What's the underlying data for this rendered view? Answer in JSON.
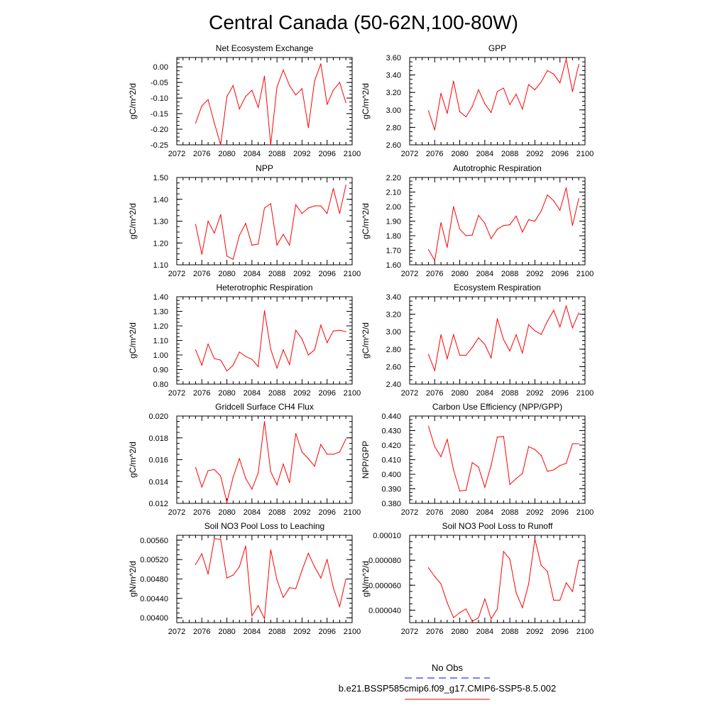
{
  "figure": {
    "title": "Central Canada (50-62N,100-80W)"
  },
  "legend": {
    "entries": [
      {
        "label": "No Obs",
        "color": "#0000ff",
        "style": "dashed"
      },
      {
        "label": "b.e21.BSSP585cmip6.f09_g17.CMIP6-SSP5-8.5.002",
        "color": "#ff0000",
        "style": "solid"
      }
    ]
  },
  "chart_data": [
    {
      "type": "line",
      "title": "Net Ecosystem Exchange",
      "ylabel": "gC/m^2/d",
      "xlim": [
        2072,
        2100
      ],
      "ylim": [
        -0.25,
        0.03
      ],
      "xticks": [
        "2072",
        "2076",
        "2080",
        "2084",
        "2088",
        "2092",
        "2096",
        "2100"
      ],
      "yticks": [
        "0.00",
        "-0.05",
        "-0.10",
        "-0.15",
        "-0.20",
        "-0.25"
      ],
      "ytick_values": [
        0.0,
        -0.05,
        -0.1,
        -0.15,
        -0.2,
        -0.25
      ],
      "x": [
        2075,
        2076,
        2077,
        2078,
        2079,
        2080,
        2081,
        2082,
        2083,
        2084,
        2085,
        2086,
        2087,
        2088,
        2089,
        2090,
        2091,
        2092,
        2093,
        2094,
        2095,
        2096,
        2097,
        2098,
        2099
      ],
      "series": [
        {
          "name": "b.e21.BSSP585cmip6.f09_g17.CMIP6-SSP5-8.5.002",
          "color": "#ff0000",
          "values": [
            -0.18,
            -0.125,
            -0.105,
            -0.18,
            -0.25,
            -0.095,
            -0.06,
            -0.135,
            -0.095,
            -0.075,
            -0.13,
            -0.03,
            -0.25,
            -0.065,
            -0.01,
            -0.06,
            -0.09,
            -0.07,
            -0.195,
            -0.045,
            0.01,
            -0.12,
            -0.075,
            -0.05,
            -0.115
          ]
        }
      ]
    },
    {
      "type": "line",
      "title": "GPP",
      "ylabel": "gC/m^2/d",
      "xlim": [
        2072,
        2100
      ],
      "ylim": [
        2.6,
        3.6
      ],
      "xticks": [
        "2072",
        "2076",
        "2080",
        "2084",
        "2088",
        "2092",
        "2096",
        "2100"
      ],
      "yticks": [
        "3.60",
        "3.40",
        "3.20",
        "3.00",
        "2.80",
        "2.60"
      ],
      "ytick_values": [
        3.6,
        3.4,
        3.2,
        3.0,
        2.8,
        2.6
      ],
      "x": [
        2075,
        2076,
        2077,
        2078,
        2079,
        2080,
        2081,
        2082,
        2083,
        2084,
        2085,
        2086,
        2087,
        2088,
        2089,
        2090,
        2091,
        2092,
        2093,
        2094,
        2095,
        2096,
        2097,
        2098,
        2099
      ],
      "series": [
        {
          "name": "b.e21.BSSP585cmip6.f09_g17.CMIP6-SSP5-8.5.002",
          "color": "#ff0000",
          "values": [
            2.99,
            2.77,
            3.19,
            2.96,
            3.33,
            2.98,
            2.92,
            3.04,
            3.23,
            3.07,
            2.97,
            3.21,
            3.25,
            3.06,
            3.18,
            3.01,
            3.29,
            3.23,
            3.32,
            3.45,
            3.41,
            3.31,
            3.58,
            3.21,
            3.52
          ]
        }
      ]
    },
    {
      "type": "line",
      "title": "NPP",
      "ylabel": "gC/m^2/d",
      "xlim": [
        2072,
        2100
      ],
      "ylim": [
        1.1,
        1.5
      ],
      "xticks": [
        "2072",
        "2076",
        "2080",
        "2084",
        "2088",
        "2092",
        "2096",
        "2100"
      ],
      "yticks": [
        "1.50",
        "1.40",
        "1.30",
        "1.20",
        "1.10"
      ],
      "ytick_values": [
        1.5,
        1.4,
        1.3,
        1.2,
        1.1
      ],
      "x": [
        2075,
        2076,
        2077,
        2078,
        2079,
        2080,
        2081,
        2082,
        2083,
        2084,
        2085,
        2086,
        2087,
        2088,
        2089,
        2090,
        2091,
        2092,
        2093,
        2094,
        2095,
        2096,
        2097,
        2098,
        2099
      ],
      "series": [
        {
          "name": "b.e21.BSSP585cmip6.f09_g17.CMIP6-SSP5-8.5.002",
          "color": "#ff0000",
          "values": [
            1.285,
            1.148,
            1.3,
            1.245,
            1.33,
            1.14,
            1.125,
            1.235,
            1.29,
            1.19,
            1.195,
            1.36,
            1.38,
            1.19,
            1.24,
            1.19,
            1.375,
            1.335,
            1.36,
            1.37,
            1.37,
            1.335,
            1.45,
            1.335,
            1.465
          ]
        }
      ]
    },
    {
      "type": "line",
      "title": "Autotrophic Respiration",
      "ylabel": "gC/m^2/d",
      "xlim": [
        2072,
        2100
      ],
      "ylim": [
        1.6,
        2.2
      ],
      "xticks": [
        "2072",
        "2076",
        "2080",
        "2084",
        "2088",
        "2092",
        "2096",
        "2100"
      ],
      "yticks": [
        "2.20",
        "2.10",
        "2.00",
        "1.90",
        "1.80",
        "1.70",
        "1.60"
      ],
      "ytick_values": [
        2.2,
        2.1,
        2.0,
        1.9,
        1.8,
        1.7,
        1.6
      ],
      "x": [
        2075,
        2076,
        2077,
        2078,
        2079,
        2080,
        2081,
        2082,
        2083,
        2084,
        2085,
        2086,
        2087,
        2088,
        2089,
        2090,
        2091,
        2092,
        2093,
        2094,
        2095,
        2096,
        2097,
        2098,
        2099
      ],
      "series": [
        {
          "name": "b.e21.BSSP585cmip6.f09_g17.CMIP6-SSP5-8.5.002",
          "color": "#ff0000",
          "values": [
            1.705,
            1.63,
            1.89,
            1.72,
            2.0,
            1.845,
            1.8,
            1.805,
            1.94,
            1.885,
            1.78,
            1.845,
            1.87,
            1.875,
            1.935,
            1.825,
            1.91,
            1.9,
            1.97,
            2.08,
            2.04,
            1.975,
            2.13,
            1.87,
            2.055
          ]
        }
      ]
    },
    {
      "type": "line",
      "title": "Heterotrophic Respiration",
      "ylabel": "gC/m^2/d",
      "xlim": [
        2072,
        2100
      ],
      "ylim": [
        0.8,
        1.4
      ],
      "xticks": [
        "2072",
        "2076",
        "2080",
        "2084",
        "2088",
        "2092",
        "2096",
        "2100"
      ],
      "yticks": [
        "1.40",
        "1.30",
        "1.20",
        "1.10",
        "1.00",
        "0.90",
        "0.80"
      ],
      "ytick_values": [
        1.4,
        1.3,
        1.2,
        1.1,
        1.0,
        0.9,
        0.8
      ],
      "x": [
        2075,
        2076,
        2077,
        2078,
        2079,
        2080,
        2081,
        2082,
        2083,
        2084,
        2085,
        2086,
        2087,
        2088,
        2089,
        2090,
        2091,
        2092,
        2093,
        2094,
        2095,
        2096,
        2097,
        2098,
        2099
      ],
      "series": [
        {
          "name": "b.e21.BSSP585cmip6.f09_g17.CMIP6-SSP5-8.5.002",
          "color": "#ff0000",
          "values": [
            1.035,
            0.93,
            1.075,
            0.975,
            0.965,
            0.89,
            0.93,
            1.02,
            0.99,
            0.97,
            0.92,
            1.305,
            1.04,
            0.91,
            1.035,
            0.935,
            1.17,
            1.11,
            1.0,
            1.035,
            1.205,
            1.085,
            1.165,
            1.17,
            1.16
          ]
        }
      ]
    },
    {
      "type": "line",
      "title": "Ecosystem Respiration",
      "ylabel": "gC/m^2/d",
      "xlim": [
        2072,
        2100
      ],
      "ylim": [
        2.4,
        3.4
      ],
      "xticks": [
        "2072",
        "2076",
        "2080",
        "2084",
        "2088",
        "2092",
        "2096",
        "2100"
      ],
      "yticks": [
        "3.40",
        "3.20",
        "3.00",
        "2.80",
        "2.60",
        "2.40"
      ],
      "ytick_values": [
        3.4,
        3.2,
        3.0,
        2.8,
        2.6,
        2.4
      ],
      "x": [
        2075,
        2076,
        2077,
        2078,
        2079,
        2080,
        2081,
        2082,
        2083,
        2084,
        2085,
        2086,
        2087,
        2088,
        2089,
        2090,
        2091,
        2092,
        2093,
        2094,
        2095,
        2096,
        2097,
        2098,
        2099
      ],
      "series": [
        {
          "name": "b.e21.BSSP585cmip6.f09_g17.CMIP6-SSP5-8.5.002",
          "color": "#ff0000",
          "values": [
            2.74,
            2.555,
            2.965,
            2.69,
            2.965,
            2.73,
            2.73,
            2.82,
            2.93,
            2.855,
            2.7,
            3.15,
            2.91,
            2.78,
            2.965,
            2.755,
            3.08,
            3.01,
            2.97,
            3.12,
            3.245,
            3.055,
            3.295,
            3.045,
            3.215
          ]
        }
      ]
    },
    {
      "type": "line",
      "title": "Gridcell Surface CH4 Flux",
      "ylabel": "gC/m^2/d",
      "xlim": [
        2072,
        2100
      ],
      "ylim": [
        0.012,
        0.02
      ],
      "xticks": [
        "2072",
        "2076",
        "2080",
        "2084",
        "2088",
        "2092",
        "2096",
        "2100"
      ],
      "yticks": [
        "0.020",
        "0.018",
        "0.016",
        "0.014",
        "0.012"
      ],
      "ytick_values": [
        0.02,
        0.018,
        0.016,
        0.014,
        0.012
      ],
      "x": [
        2075,
        2076,
        2077,
        2078,
        2079,
        2080,
        2081,
        2082,
        2083,
        2084,
        2085,
        2086,
        2087,
        2088,
        2089,
        2090,
        2091,
        2092,
        2093,
        2094,
        2095,
        2096,
        2097,
        2098,
        2099
      ],
      "series": [
        {
          "name": "b.e21.BSSP585cmip6.f09_g17.CMIP6-SSP5-8.5.002",
          "color": "#ff0000",
          "values": [
            0.0153,
            0.0135,
            0.015,
            0.0151,
            0.0145,
            0.0121,
            0.0144,
            0.0161,
            0.0143,
            0.0133,
            0.0148,
            0.0195,
            0.0149,
            0.0137,
            0.0156,
            0.0139,
            0.0184,
            0.0167,
            0.0161,
            0.0154,
            0.0174,
            0.0165,
            0.0165,
            0.0167,
            0.0179
          ]
        }
      ]
    },
    {
      "type": "line",
      "title": "Carbon Use Efficiency (NPP/GPP)",
      "ylabel": "NPP/GPP",
      "xlim": [
        2072,
        2100
      ],
      "ylim": [
        0.38,
        0.44
      ],
      "xticks": [
        "2072",
        "2076",
        "2080",
        "2084",
        "2088",
        "2092",
        "2096",
        "2100"
      ],
      "yticks": [
        "0.440",
        "0.430",
        "0.420",
        "0.410",
        "0.400",
        "0.390",
        "0.380"
      ],
      "ytick_values": [
        0.44,
        0.43,
        0.42,
        0.41,
        0.4,
        0.39,
        0.38
      ],
      "x": [
        2075,
        2076,
        2077,
        2078,
        2079,
        2080,
        2081,
        2082,
        2083,
        2084,
        2085,
        2086,
        2087,
        2088,
        2089,
        2090,
        2091,
        2092,
        2093,
        2094,
        2095,
        2096,
        2097,
        2098,
        2099
      ],
      "series": [
        {
          "name": "b.e21.BSSP585cmip6.f09_g17.CMIP6-SSP5-8.5.002",
          "color": "#ff0000",
          "values": [
            0.433,
            0.419,
            0.412,
            0.424,
            0.403,
            0.3885,
            0.389,
            0.408,
            0.405,
            0.391,
            0.406,
            0.4255,
            0.426,
            0.393,
            0.397,
            0.4005,
            0.419,
            0.417,
            0.413,
            0.402,
            0.403,
            0.406,
            0.4075,
            0.421,
            0.421
          ]
        }
      ]
    },
    {
      "type": "line",
      "title": "Soil NO3 Pool Loss to Leaching",
      "ylabel": "gN/m^2/d",
      "xlim": [
        2072,
        2100
      ],
      "ylim": [
        0.0039,
        0.0057
      ],
      "xticks": [
        "2072",
        "2076",
        "2080",
        "2084",
        "2088",
        "2092",
        "2096",
        "2100"
      ],
      "yticks": [
        "0.00560",
        "0.00520",
        "0.00480",
        "0.00440",
        "0.00400"
      ],
      "ytick_values": [
        0.0056,
        0.0052,
        0.0048,
        0.0044,
        0.004
      ],
      "x": [
        2075,
        2076,
        2077,
        2078,
        2079,
        2080,
        2081,
        2082,
        2083,
        2084,
        2085,
        2086,
        2087,
        2088,
        2089,
        2090,
        2091,
        2092,
        2093,
        2094,
        2095,
        2096,
        2097,
        2098,
        2099
      ],
      "series": [
        {
          "name": "b.e21.BSSP585cmip6.f09_g17.CMIP6-SSP5-8.5.002",
          "color": "#ff0000",
          "values": [
            0.0051,
            0.00532,
            0.0049,
            0.00563,
            0.00562,
            0.00482,
            0.00488,
            0.00505,
            0.00548,
            0.00404,
            0.00425,
            0.00398,
            0.0054,
            0.00478,
            0.00442,
            0.00462,
            0.0046,
            0.00498,
            0.00533,
            0.00505,
            0.00482,
            0.0052,
            0.00462,
            0.00423,
            0.0048
          ]
        }
      ]
    },
    {
      "type": "line",
      "title": "Soil NO3 Pool Loss to Runoff",
      "ylabel": "gN/m^2/d",
      "xlim": [
        2072,
        2100
      ],
      "ylim": [
        3e-05,
        0.0001
      ],
      "xticks": [
        "2072",
        "2076",
        "2080",
        "2084",
        "2088",
        "2092",
        "2096",
        "2100"
      ],
      "yticks": [
        "0.00010",
        "0.000080",
        "0.000060",
        "0.000040"
      ],
      "ytick_values": [
        0.0001,
        8e-05,
        6e-05,
        4e-05
      ],
      "x": [
        2075,
        2076,
        2077,
        2078,
        2079,
        2080,
        2081,
        2082,
        2083,
        2084,
        2085,
        2086,
        2087,
        2088,
        2089,
        2090,
        2091,
        2092,
        2093,
        2094,
        2095,
        2096,
        2097,
        2098,
        2099
      ],
      "series": [
        {
          "name": "b.e21.BSSP585cmip6.f09_g17.CMIP6-SSP5-8.5.002",
          "color": "#ff0000",
          "values": [
            7.4e-05,
            6.7e-05,
            6.1e-05,
            4.6e-05,
            3.4e-05,
            3.8e-05,
            4.1e-05,
            3.1e-05,
            3.4e-05,
            4.9e-05,
            3.3e-05,
            4.1e-05,
            8.7e-05,
            8.1e-05,
            5.4e-05,
            4.2e-05,
            6.1e-05,
            9.7e-05,
            7.6e-05,
            7.1e-05,
            4.8e-05,
            4.8e-05,
            6.2e-05,
            5.5e-05,
            8e-05
          ]
        }
      ]
    }
  ]
}
